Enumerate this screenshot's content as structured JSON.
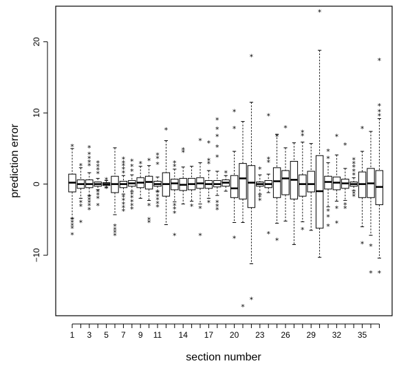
{
  "chart_data": {
    "type": "boxplot",
    "xlabel": "section number",
    "ylabel": "prediction error",
    "ylim": [
      -18.5,
      25
    ],
    "yticks": [
      -10,
      0,
      10,
      20
    ],
    "xticks_labeled": [
      "1",
      "3",
      "5",
      "7",
      "9",
      "11",
      "14",
      "17",
      "20",
      "23",
      "26",
      "29",
      "32",
      "35"
    ],
    "categories": [
      "1",
      "2",
      "3",
      "4",
      "5",
      "6",
      "7",
      "8",
      "9",
      "10",
      "11",
      "12",
      "13",
      "14",
      "15",
      "16",
      "17",
      "18",
      "19",
      "20",
      "21",
      "22",
      "23",
      "24",
      "25",
      "26",
      "27",
      "28",
      "29",
      "30",
      "31",
      "32",
      "33",
      "34",
      "35",
      "36",
      "37"
    ],
    "boxes": [
      {
        "section": "1",
        "whisker_low": -4.8,
        "q1": -1.1,
        "median": 0.2,
        "q3": 1.4,
        "whisker_high": 5.0,
        "outliers": [
          5.3,
          -5.0,
          -5.4,
          -5.8,
          -6.2,
          -7.1
        ]
      },
      {
        "section": "2",
        "whisker_low": -2.0,
        "q1": -0.6,
        "median": 0.0,
        "q3": 0.6,
        "whisker_high": 2.3,
        "outliers": [
          2.6,
          -2.6,
          -3.1,
          -5.4
        ]
      },
      {
        "section": "3",
        "whisker_low": -1.6,
        "q1": -0.5,
        "median": 0.0,
        "q3": 0.6,
        "whisker_high": 1.6,
        "outliers": [
          5.1,
          4.2,
          3.6,
          3.1,
          2.6,
          -1.8,
          -2.2,
          -2.6,
          -3.0,
          -3.6
        ]
      },
      {
        "section": "4",
        "whisker_low": -0.8,
        "q1": -0.3,
        "median": 0.0,
        "q3": 0.3,
        "whisker_high": 0.8,
        "outliers": [
          3.0,
          2.5,
          2.0,
          1.5,
          -1.1,
          -1.5,
          -2.0,
          -3.0
        ]
      },
      {
        "section": "5",
        "whisker_low": -0.5,
        "q1": -0.2,
        "median": 0.0,
        "q3": 0.2,
        "whisker_high": 0.5,
        "outliers": [
          0.6,
          -0.6
        ]
      },
      {
        "section": "6",
        "whisker_low": -4.3,
        "q1": -1.2,
        "median": 0.0,
        "q3": 1.1,
        "whisker_high": 5.1,
        "outliers": [
          -5.9,
          -6.4,
          -6.8,
          -7.2
        ]
      },
      {
        "section": "7",
        "whisker_low": -1.4,
        "q1": -0.5,
        "median": 0.0,
        "q3": 0.4,
        "whisker_high": 1.2,
        "outliers": [
          3.5,
          3.0,
          2.6,
          2.1,
          1.6,
          -1.8,
          -2.3,
          -2.8,
          -3.3,
          -3.8
        ]
      },
      {
        "section": "8",
        "whisker_low": -1.0,
        "q1": -0.3,
        "median": 0.1,
        "q3": 0.5,
        "whisker_high": 1.3,
        "outliers": [
          3.2,
          2.5,
          1.8,
          -1.4,
          -1.9,
          -2.5,
          -3.0,
          -3.5
        ]
      },
      {
        "section": "9",
        "whisker_low": -2.0,
        "q1": -0.5,
        "median": 0.2,
        "q3": 0.9,
        "whisker_high": 2.5,
        "outliers": [
          2.9
        ]
      },
      {
        "section": "10",
        "whisker_low": -2.3,
        "q1": -0.7,
        "median": 0.3,
        "q3": 1.1,
        "whisker_high": 2.6,
        "outliers": [
          3.3,
          -3.0,
          -5.0,
          -5.4
        ]
      },
      {
        "section": "11",
        "whisker_low": -1.0,
        "q1": -0.3,
        "median": 0.0,
        "q3": 0.4,
        "whisker_high": 1.0,
        "outliers": [
          4.1,
          3.6,
          2.8,
          -1.2,
          -1.7,
          -2.2,
          -2.7,
          -3.2
        ]
      },
      {
        "section": "12",
        "whisker_low": -5.7,
        "q1": -1.7,
        "median": 0.0,
        "q3": 1.6,
        "whisker_high": 6.1,
        "outliers": [
          7.6
        ]
      },
      {
        "section": "13",
        "whisker_low": -2.5,
        "q1": -0.8,
        "median": 0.1,
        "q3": 0.7,
        "whisker_high": 2.1,
        "outliers": [
          3.0,
          2.5,
          -3.0,
          -3.5,
          -4.1,
          -7.2
        ]
      },
      {
        "section": "14",
        "whisker_low": -2.8,
        "q1": -0.9,
        "median": -0.1,
        "q3": 0.8,
        "whisker_high": 2.4,
        "outliers": [
          4.8,
          4.5
        ]
      },
      {
        "section": "15",
        "whisker_low": -2.4,
        "q1": -0.8,
        "median": 0.0,
        "q3": 0.8,
        "whisker_high": 2.5,
        "outliers": [
          -3.1
        ]
      },
      {
        "section": "16",
        "whisker_low": -2.8,
        "q1": -0.6,
        "median": 0.1,
        "q3": 0.9,
        "whisker_high": 3.0,
        "outliers": [
          6.1,
          -3.4,
          -7.2
        ]
      },
      {
        "section": "17",
        "whisker_low": -2.0,
        "q1": -0.6,
        "median": 0.0,
        "q3": 0.5,
        "whisker_high": 1.9,
        "outliers": [
          5.8,
          3.3,
          2.9,
          -2.6
        ]
      },
      {
        "section": "18",
        "whisker_low": -1.6,
        "q1": -0.4,
        "median": 0.0,
        "q3": 0.5,
        "whisker_high": 1.8,
        "outliers": [
          9.0,
          7.7,
          6.7,
          5.2,
          3.8,
          -2.6,
          -3.1,
          -3.6
        ]
      },
      {
        "section": "19",
        "whisker_low": -1.0,
        "q1": -0.3,
        "median": 0.2,
        "q3": 0.6,
        "whisker_high": 1.2,
        "outliers": [
          1.6
        ]
      },
      {
        "section": "20",
        "whisker_low": -5.4,
        "q1": -1.9,
        "median": -0.6,
        "q3": 1.2,
        "whisker_high": 4.6,
        "outliers": [
          10.2,
          7.8,
          -7.6
        ]
      },
      {
        "section": "21",
        "whisker_low": -5.4,
        "q1": -2.1,
        "median": 0.8,
        "q3": 2.9,
        "whisker_high": 8.8,
        "outliers": [
          -17.2
        ]
      },
      {
        "section": "22",
        "whisker_low": -11.2,
        "q1": -3.3,
        "median": 0.2,
        "q3": 2.6,
        "whisker_high": 11.5,
        "outliers": [
          17.9,
          -16.2
        ]
      },
      {
        "section": "23",
        "whisker_low": -1.4,
        "q1": -0.3,
        "median": 0.0,
        "q3": 0.3,
        "whisker_high": 1.3,
        "outliers": [
          2.1,
          -1.8,
          -2.3
        ]
      },
      {
        "section": "24",
        "whisker_low": -1.2,
        "q1": -0.5,
        "median": 0.0,
        "q3": 0.5,
        "whisker_high": 1.4,
        "outliers": [
          9.6,
          3.5,
          3.1,
          -7.0
        ]
      },
      {
        "section": "25",
        "whisker_low": -5.5,
        "q1": -1.9,
        "median": 0.4,
        "q3": 2.3,
        "whisker_high": 7.0,
        "outliers": [
          6.7,
          -7.9
        ]
      },
      {
        "section": "26",
        "whisker_low": -5.2,
        "q1": -1.5,
        "median": 0.8,
        "q3": 1.9,
        "whisker_high": 5.1,
        "outliers": [
          7.9
        ]
      },
      {
        "section": "27",
        "whisker_low": -8.5,
        "q1": -2.1,
        "median": 0.6,
        "q3": 3.2,
        "whisker_high": 5.8,
        "outliers": []
      },
      {
        "section": "28",
        "whisker_low": -5.3,
        "q1": -1.7,
        "median": 0.0,
        "q3": 1.3,
        "whisker_high": 5.9,
        "outliers": [
          7.3,
          6.8,
          -6.4
        ]
      },
      {
        "section": "29",
        "whisker_low": -6.5,
        "q1": -1.1,
        "median": 0.0,
        "q3": 1.8,
        "whisker_high": 5.7,
        "outliers": []
      },
      {
        "section": "30",
        "whisker_low": -10.3,
        "q1": -6.2,
        "median": -1.0,
        "q3": 4.0,
        "whisker_high": 18.8,
        "outliers": [
          24.2
        ]
      },
      {
        "section": "31",
        "whisker_low": -3.2,
        "q1": -0.7,
        "median": 0.3,
        "q3": 1.1,
        "whisker_high": 3.0,
        "outliers": [
          4.6,
          3.6,
          -3.8,
          -4.6,
          -5.9
        ]
      },
      {
        "section": "32",
        "whisker_low": -2.4,
        "q1": -0.8,
        "median": 0.2,
        "q3": 1.0,
        "whisker_high": 4.1,
        "outliers": [
          6.7,
          -3.4,
          -5.5
        ]
      },
      {
        "section": "33",
        "whisker_low": -2.3,
        "q1": -0.6,
        "median": 0.1,
        "q3": 0.7,
        "whisker_high": 2.2,
        "outliers": [
          5.5,
          -2.9,
          -3.4
        ]
      },
      {
        "section": "34",
        "whisker_low": -0.9,
        "q1": -0.3,
        "median": 0.0,
        "q3": 0.3,
        "whisker_high": 0.9,
        "outliers": [
          3.4,
          2.9,
          2.4,
          1.8,
          1.3,
          -1.3,
          -1.7
        ]
      },
      {
        "section": "35",
        "whisker_low": -6.0,
        "q1": -1.9,
        "median": 0.0,
        "q3": 1.7,
        "whisker_high": 4.6,
        "outliers": [
          7.8,
          -8.4
        ]
      },
      {
        "section": "36",
        "whisker_low": -7.2,
        "q1": -1.9,
        "median": 0.1,
        "q3": 2.2,
        "whisker_high": 7.4,
        "outliers": [
          -8.7,
          -12.5
        ]
      },
      {
        "section": "37",
        "whisker_low": -10.4,
        "q1": -2.9,
        "median": -0.4,
        "q3": 1.9,
        "whisker_high": 9.2,
        "outliers": [
          17.4,
          11.0,
          10.2,
          9.6,
          -12.5
        ]
      }
    ],
    "grid": false,
    "legend": "none"
  }
}
